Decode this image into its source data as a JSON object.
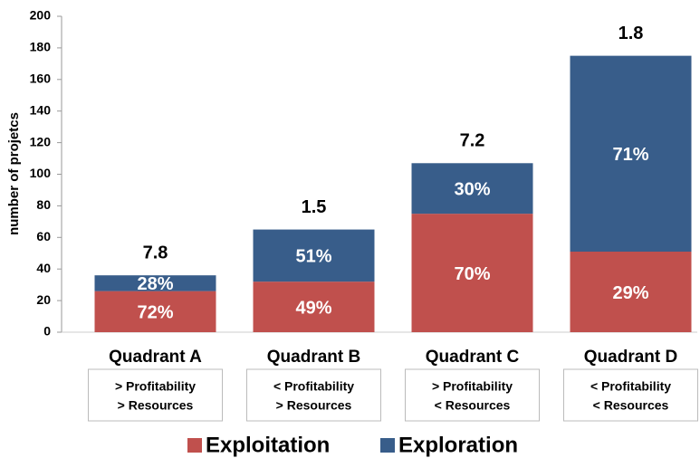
{
  "chart_data": {
    "type": "stacked_bar",
    "y_label": "number of projetcs",
    "categories": [
      "Quadrant A",
      "Quadrant B",
      "Quadrant C",
      "Quadrant D"
    ],
    "category_notes": [
      [
        "> Profitability",
        "> Resources"
      ],
      [
        "< Profitability",
        "> Resources"
      ],
      [
        "> Profitability",
        "< Resources"
      ],
      [
        "< Profitability",
        "< Resources"
      ]
    ],
    "top_labels": [
      7.8,
      1.5,
      7.2,
      1.8
    ],
    "series": [
      {
        "name": "Exploitation",
        "color": "#c0504d",
        "values": [
          26,
          32,
          75,
          51
        ],
        "percent_labels": [
          "72%",
          "49%",
          "70%",
          "29%"
        ]
      },
      {
        "name": "Exploration",
        "color": "#385d8a",
        "values": [
          10,
          33,
          32,
          124
        ],
        "percent_labels": [
          "28%",
          "51%",
          "30%",
          "71%"
        ]
      }
    ],
    "ylim": [
      0,
      200
    ],
    "yticks": [
      0,
      20,
      40,
      60,
      80,
      100,
      120,
      140,
      160,
      180,
      200
    ]
  }
}
